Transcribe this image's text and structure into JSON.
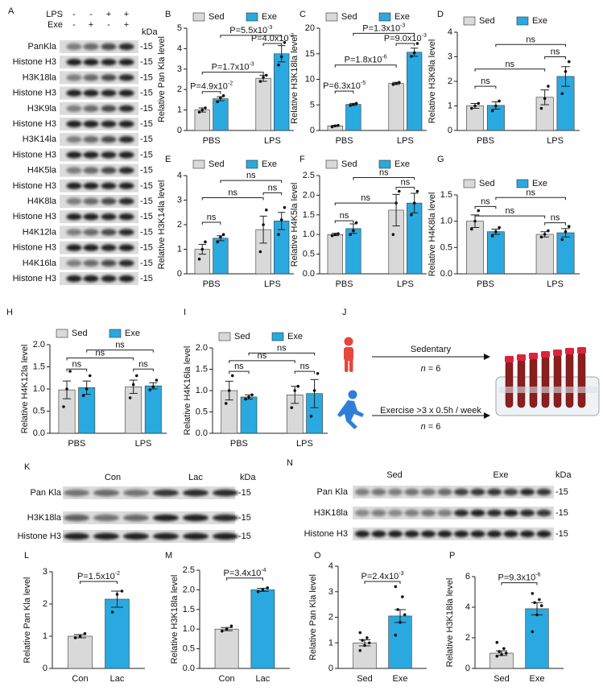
{
  "blot_A": {
    "panel": "A",
    "unit": "kDa",
    "header": [
      {
        "name": "LPS",
        "signs": [
          "-",
          "-",
          "+",
          "+"
        ]
      },
      {
        "name": "Exe",
        "signs": [
          "-",
          "+",
          "-",
          "+"
        ]
      }
    ],
    "rows": [
      {
        "name": "PanKla",
        "marker": "-15"
      },
      {
        "name": "Histone H3",
        "marker": "-15"
      },
      {
        "name": "H3K18la",
        "marker": "-15"
      },
      {
        "name": "Histone H3",
        "marker": "-15"
      },
      {
        "name": "H3K9la",
        "marker": "-15"
      },
      {
        "name": "Histone H3",
        "marker": "-15"
      },
      {
        "name": "H3K14la",
        "marker": "-15"
      },
      {
        "name": "Histone H3",
        "marker": "-15"
      },
      {
        "name": "H4K5la",
        "marker": "-15"
      },
      {
        "name": "Histone H3",
        "marker": "-15"
      },
      {
        "name": "H4K8la",
        "marker": "-15"
      },
      {
        "name": "Histone H3",
        "marker": "-15"
      },
      {
        "name": "H4K12la",
        "marker": "-15"
      },
      {
        "name": "Histone H3",
        "marker": "-15"
      },
      {
        "name": "H4K16la",
        "marker": "-15"
      },
      {
        "name": "Histone H3",
        "marker": "-15"
      }
    ]
  },
  "diagram_J": {
    "panel": "J",
    "groups": [
      {
        "label": "Sedentary",
        "n": "n",
        "count": "= 6"
      },
      {
        "label": "Exercise >3 x 0.5h / week",
        "n": "n",
        "count": "= 6"
      }
    ]
  },
  "blot_K": {
    "panel": "K",
    "unit": "kDa",
    "groups": [
      "Con",
      "Lac"
    ],
    "rows": [
      {
        "name": "Pan Kla",
        "marker": "-15"
      },
      {
        "name": "H3K18la",
        "marker": "-15"
      },
      {
        "name": "Histone H3",
        "marker": "-15"
      }
    ]
  },
  "blot_N": {
    "panel": "N",
    "unit": "kDa",
    "groups": [
      "Sed",
      "Exe"
    ],
    "rows": [
      {
        "name": "Pan Kla",
        "marker": "-15"
      },
      {
        "name": "H3K18la",
        "marker": "-15"
      },
      {
        "name": "Histone H3",
        "marker": "-15"
      }
    ]
  },
  "chart_data": [
    {
      "panel": "B",
      "type": "bar",
      "ylabel": "Relative Pan Kla level",
      "categories": [
        "PBS",
        "LPS"
      ],
      "series": [
        {
          "name": "Sed",
          "color": "#d9d9d9",
          "values": [
            1.0,
            2.55
          ],
          "errors": [
            0.1,
            0.15
          ],
          "points": [
            [
              0.9,
              1.0,
              1.1
            ],
            [
              2.4,
              2.6,
              2.7
            ]
          ]
        },
        {
          "name": "Exe",
          "color": "#29a9e0",
          "values": [
            1.55,
            3.75
          ],
          "errors": [
            0.1,
            0.4
          ],
          "points": [
            [
              1.4,
              1.6,
              1.7
            ],
            [
              3.2,
              3.6,
              4.3
            ]
          ]
        }
      ],
      "ylim": [
        0,
        5
      ],
      "yticks": [
        0,
        1,
        2,
        3,
        4,
        5
      ],
      "annotations": [
        {
          "text": "P=4.9x10",
          "exp": "-2"
        },
        {
          "text": "P=1.7x10",
          "exp": "-3"
        },
        {
          "text": "P=5.5x10",
          "exp": "-3"
        },
        {
          "text": "P=4.0x10",
          "exp": "-2"
        }
      ]
    },
    {
      "panel": "C",
      "type": "bar",
      "ylabel": "Relative H3K18la level",
      "categories": [
        "PBS",
        "LPS"
      ],
      "series": [
        {
          "name": "Sed",
          "color": "#d9d9d9",
          "values": [
            0.9,
            9.2
          ],
          "errors": [
            0.1,
            0.2
          ],
          "points": [
            [
              0.7,
              0.9,
              1.0
            ],
            [
              9.0,
              9.2,
              9.4
            ]
          ]
        },
        {
          "name": "Exe",
          "color": "#29a9e0",
          "values": [
            5.1,
            15.3
          ],
          "errors": [
            0.2,
            0.8
          ],
          "points": [
            [
              4.9,
              5.1,
              5.3
            ],
            [
              14.5,
              15.2,
              17
            ]
          ]
        }
      ],
      "ylim": [
        0,
        20
      ],
      "yticks": [
        0,
        5,
        10,
        15,
        20
      ],
      "annotations": [
        {
          "text": "P=6.3x10",
          "exp": "-5"
        },
        {
          "text": "P=1.8x10",
          "exp": "-6"
        },
        {
          "text": "P=1.3x10",
          "exp": "-3"
        },
        {
          "text": "P=9.0x10",
          "exp": "-3"
        }
      ]
    },
    {
      "panel": "D",
      "type": "bar",
      "ylabel": "Relative H3K9la level",
      "categories": [
        "PBS",
        "LPS"
      ],
      "series": [
        {
          "name": "Sed",
          "color": "#d9d9d9",
          "values": [
            1.0,
            1.35
          ],
          "errors": [
            0.1,
            0.3
          ],
          "points": [
            [
              0.9,
              1.0,
              1.1
            ],
            [
              0.9,
              1.3,
              1.8
            ]
          ]
        },
        {
          "name": "Exe",
          "color": "#29a9e0",
          "values": [
            1.02,
            2.2
          ],
          "errors": [
            0.15,
            0.4
          ],
          "points": [
            [
              0.8,
              1.0,
              1.2
            ],
            [
              1.5,
              2.4,
              2.8
            ]
          ]
        }
      ],
      "ylim": [
        0,
        4
      ],
      "yticks": [
        0,
        1,
        2,
        3,
        4
      ],
      "annotations": [
        {
          "text": "ns"
        },
        {
          "text": "ns"
        },
        {
          "text": "ns"
        },
        {
          "text": "ns"
        }
      ]
    },
    {
      "panel": "E",
      "type": "bar",
      "ylabel": "Relative H3K14la level",
      "categories": [
        "PBS",
        "LPS"
      ],
      "series": [
        {
          "name": "Sed",
          "color": "#d9d9d9",
          "values": [
            1.0,
            1.8
          ],
          "errors": [
            0.2,
            0.55
          ],
          "points": [
            [
              0.6,
              1.0,
              1.3
            ],
            [
              0.9,
              2.0,
              2.6
            ]
          ]
        },
        {
          "name": "Exe",
          "color": "#29a9e0",
          "values": [
            1.45,
            2.15
          ],
          "errors": [
            0.1,
            0.35
          ],
          "points": [
            [
              1.3,
              1.5,
              1.6
            ],
            [
              1.6,
              2.2,
              2.7
            ]
          ]
        }
      ],
      "ylim": [
        0,
        4
      ],
      "yticks": [
        0,
        1,
        2,
        3,
        4
      ],
      "annotations": [
        {
          "text": "ns"
        },
        {
          "text": "ns"
        },
        {
          "text": "ns"
        },
        {
          "text": "ns"
        }
      ]
    },
    {
      "panel": "F",
      "type": "bar",
      "ylabel": "Relative H4K5la level",
      "categories": [
        "PBS",
        "LPS"
      ],
      "series": [
        {
          "name": "Sed",
          "color": "#d9d9d9",
          "values": [
            1.0,
            1.62
          ],
          "errors": [
            0.03,
            0.4
          ],
          "points": [
            [
              0.97,
              1.0,
              1.02
            ],
            [
              1.0,
              1.8,
              2.1
            ]
          ]
        },
        {
          "name": "Exe",
          "color": "#29a9e0",
          "values": [
            1.15,
            1.8
          ],
          "errors": [
            0.12,
            0.25
          ],
          "points": [
            [
              1.0,
              1.1,
              1.3
            ],
            [
              1.5,
              1.8,
              2.1
            ]
          ]
        }
      ],
      "ylim": [
        0,
        2.5
      ],
      "yticks": [
        {
          "value": 0,
          "label": "0.0"
        },
        0.5,
        {
          "value": 1,
          "label": "1.0"
        },
        1.5,
        {
          "value": 2,
          "label": "2.0"
        },
        2.5
      ],
      "annotations": [
        {
          "text": "ns"
        },
        {
          "text": "ns"
        },
        {
          "text": "ns"
        },
        {
          "text": "ns"
        }
      ]
    },
    {
      "panel": "G",
      "type": "bar",
      "ylabel": "Relative H4K8la level",
      "categories": [
        "PBS",
        "LPS"
      ],
      "series": [
        {
          "name": "Sed",
          "color": "#d9d9d9",
          "values": [
            1.0,
            0.75
          ],
          "errors": [
            0.12,
            0.05
          ],
          "points": [
            [
              0.85,
              1.0,
              1.2
            ],
            [
              0.7,
              0.75,
              0.82
            ]
          ]
        },
        {
          "name": "Exe",
          "color": "#29a9e0",
          "values": [
            0.8,
            0.78
          ],
          "errors": [
            0.05,
            0.08
          ],
          "points": [
            [
              0.72,
              0.8,
              0.88
            ],
            [
              0.65,
              0.8,
              0.9
            ]
          ]
        }
      ],
      "ylim": [
        0,
        1.5
      ],
      "yticks": [
        {
          "value": 0,
          "label": "0.0"
        },
        0.5,
        {
          "value": 1,
          "label": "1.0"
        },
        1.5
      ],
      "annotations": [
        {
          "text": "ns"
        },
        {
          "text": "ns"
        },
        {
          "text": "ns"
        },
        {
          "text": "ns"
        }
      ]
    },
    {
      "panel": "H",
      "type": "bar",
      "ylabel": "Relative H4K12la level",
      "categories": [
        "PBS",
        "LPS"
      ],
      "series": [
        {
          "name": "Sed",
          "color": "#d9d9d9",
          "values": [
            0.98,
            1.05
          ],
          "errors": [
            0.2,
            0.15
          ],
          "points": [
            [
              0.6,
              1.0,
              1.4
            ],
            [
              0.8,
              1.1,
              1.3
            ]
          ]
        },
        {
          "name": "Exe",
          "color": "#29a9e0",
          "values": [
            1.03,
            1.07
          ],
          "errors": [
            0.15,
            0.07
          ],
          "points": [
            [
              0.85,
              1.0,
              1.3
            ],
            [
              0.98,
              1.05,
              1.2
            ]
          ]
        }
      ],
      "ylim": [
        0,
        2
      ],
      "yticks": [
        {
          "value": 0,
          "label": "0.0"
        },
        0.5,
        {
          "value": 1,
          "label": "1.0"
        },
        1.5,
        {
          "value": 2,
          "label": "2.0"
        }
      ],
      "annotations": [
        {
          "text": "ns"
        },
        {
          "text": "ns"
        },
        {
          "text": "ns"
        },
        {
          "text": "ns"
        }
      ]
    },
    {
      "panel": "I",
      "type": "bar",
      "ylabel": "Relative H4K16la level",
      "categories": [
        "PBS",
        "LPS"
      ],
      "series": [
        {
          "name": "Sed",
          "color": "#d9d9d9",
          "values": [
            1.0,
            0.9
          ],
          "errors": [
            0.22,
            0.2
          ],
          "points": [
            [
              0.7,
              1.0,
              1.35
            ],
            [
              0.6,
              1.0,
              1.1
            ]
          ]
        },
        {
          "name": "Exe",
          "color": "#29a9e0",
          "values": [
            0.85,
            0.93
          ],
          "errors": [
            0.05,
            0.33
          ],
          "points": [
            [
              0.8,
              0.85,
              0.9
            ],
            [
              0.4,
              1.0,
              1.4
            ]
          ]
        }
      ],
      "ylim": [
        0,
        2
      ],
      "yticks": [
        {
          "value": 0,
          "label": "0.0"
        },
        0.5,
        {
          "value": 1,
          "label": "1.0"
        },
        1.5,
        {
          "value": 2,
          "label": "2.0"
        }
      ],
      "annotations": [
        {
          "text": "ns"
        },
        {
          "text": "ns"
        },
        {
          "text": "ns"
        },
        {
          "text": "ns"
        }
      ]
    },
    {
      "panel": "L",
      "type": "bar",
      "ylabel": "Relative Pan Kla level",
      "categories": [
        "Con",
        "Lac"
      ],
      "colors": [
        "#d9d9d9",
        "#29a9e0"
      ],
      "values": [
        1.0,
        2.15
      ],
      "errors": [
        0.05,
        0.25
      ],
      "points": [
        [
          0.95,
          1.0,
          1.08
        ],
        [
          1.75,
          2.3,
          2.4
        ]
      ],
      "ylim": [
        0,
        3
      ],
      "yticks": [
        0,
        1,
        2,
        3
      ],
      "annotations": [
        {
          "text": "P=1.5x10",
          "exp": "-2"
        }
      ]
    },
    {
      "panel": "M",
      "type": "bar",
      "ylabel": "Relative H3K18la level",
      "categories": [
        "Con",
        "Lac"
      ],
      "colors": [
        "#d9d9d9",
        "#29a9e0"
      ],
      "values": [
        1.0,
        2.0
      ],
      "errors": [
        0.04,
        0.04
      ],
      "points": [
        [
          0.95,
          1.0,
          1.08
        ],
        [
          1.95,
          2.0,
          2.05
        ]
      ],
      "ylim": [
        0,
        2.5
      ],
      "yticks": [
        {
          "value": 0,
          "label": "0.0"
        },
        0.5,
        {
          "value": 1,
          "label": "1.0"
        },
        1.5,
        {
          "value": 2,
          "label": "2.0"
        },
        2.5
      ],
      "annotations": [
        {
          "text": "P=3.4x10",
          "exp": "-4"
        }
      ]
    },
    {
      "panel": "O",
      "type": "bar",
      "ylabel": "Relative Pan Kla level",
      "categories": [
        "Sed",
        "Exe"
      ],
      "colors": [
        "#d9d9d9",
        "#29a9e0"
      ],
      "values": [
        1.0,
        2.05
      ],
      "errors": [
        0.12,
        0.25
      ],
      "points": [
        [
          0.7,
          0.9,
          1.0,
          1.1,
          1.2,
          1.4
        ],
        [
          1.3,
          1.8,
          2.1,
          2.3,
          2.8,
          3.2
        ]
      ],
      "ylim": [
        0,
        4
      ],
      "yticks": [
        0,
        1,
        2,
        3,
        4
      ],
      "annotations": [
        {
          "text": "P=2.4x10",
          "exp": "-3"
        }
      ]
    },
    {
      "panel": "P",
      "type": "bar",
      "ylabel": "Relative H3K18la level",
      "categories": [
        "Sed",
        "Exe"
      ],
      "colors": [
        "#d9d9d9",
        "#29a9e0"
      ],
      "values": [
        1.0,
        3.9
      ],
      "errors": [
        0.15,
        0.4
      ],
      "points": [
        [
          0.8,
          0.9,
          1.0,
          1.1,
          1.3,
          1.7
        ],
        [
          2.4,
          3.5,
          4.1,
          4.3,
          4.5,
          4.9
        ]
      ],
      "ylim": [
        0,
        6
      ],
      "yticks": [
        0,
        2,
        4,
        6
      ],
      "annotations": [
        {
          "text": "P=9.3x10",
          "exp": "-6"
        }
      ]
    }
  ]
}
